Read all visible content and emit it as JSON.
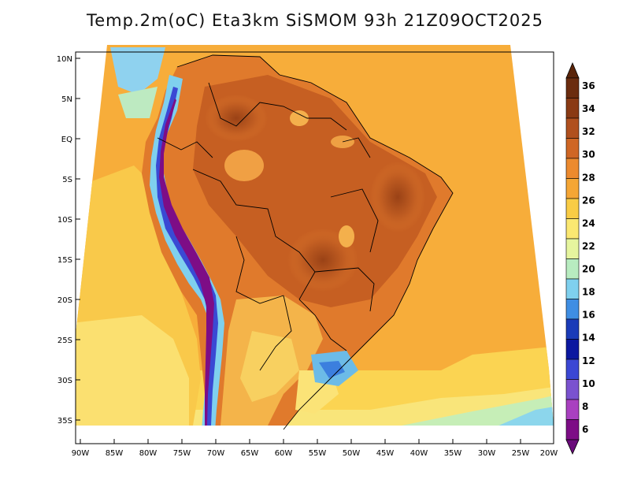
{
  "title": "Temp.2m(oC) Eta3km SiSMOM 93h 21Z09OCT2025",
  "map": {
    "lon_range": [
      -90,
      -20
    ],
    "lat_range": [
      -37,
      12
    ],
    "lat_ticks": [
      "10N",
      "5N",
      "EQ",
      "5S",
      "10S",
      "15S",
      "20S",
      "25S",
      "30S",
      "35S"
    ],
    "lon_ticks": [
      "90W",
      "85W",
      "80W",
      "75W",
      "70W",
      "65W",
      "60W",
      "55W",
      "50W",
      "45W",
      "40W",
      "35W",
      "30W",
      "25W",
      "20W"
    ]
  },
  "colorbar": {
    "labels": [
      "36",
      "34",
      "32",
      "30",
      "28",
      "26",
      "24",
      "22",
      "20",
      "18",
      "16",
      "14",
      "12",
      "10",
      "8",
      "6"
    ],
    "colors": [
      "#6b2c0e",
      "#8a3a14",
      "#b0501e",
      "#cf6624",
      "#ec8a2e",
      "#f5a635",
      "#f9cc45",
      "#fbe871",
      "#e6f59e",
      "#b8ecc0",
      "#7fd0ee",
      "#3f8ee3",
      "#1a3bb8",
      "#0b17a0",
      "#3b47d4",
      "#7a52cf",
      "#a940c0",
      "#7d0d86"
    ],
    "top_arrow_color": "#5a2409",
    "bottom_arrow_color": "#6a0a7a"
  }
}
